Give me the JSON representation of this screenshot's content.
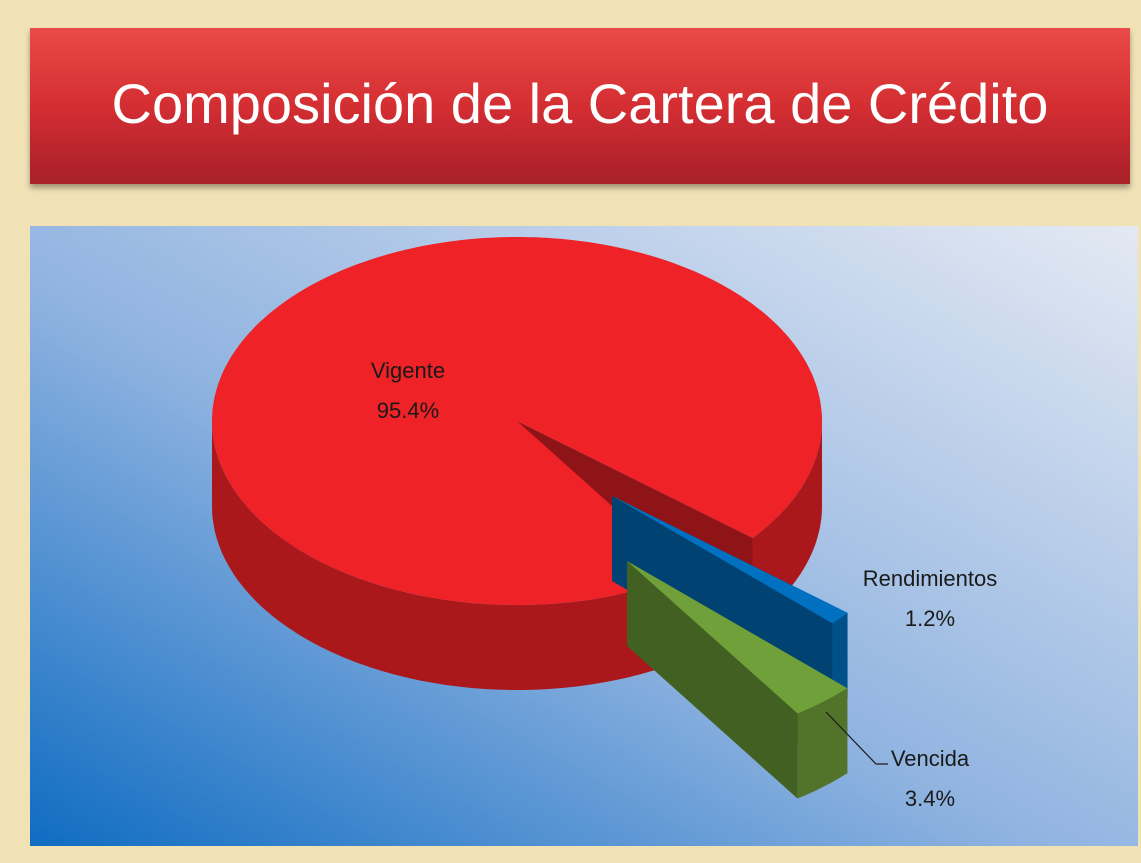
{
  "chart_data": {
    "type": "pie",
    "title": "Composición de la Cartera de Crédito",
    "categories": [
      "Vigente",
      "Rendimientos",
      "Vencida"
    ],
    "values": [
      95.4,
      1.2,
      3.4
    ],
    "value_labels": [
      "95.4%",
      "1.2%",
      "3.4%"
    ],
    "colors": [
      "#ee2227",
      "#0070c0",
      "#70a03a"
    ]
  }
}
